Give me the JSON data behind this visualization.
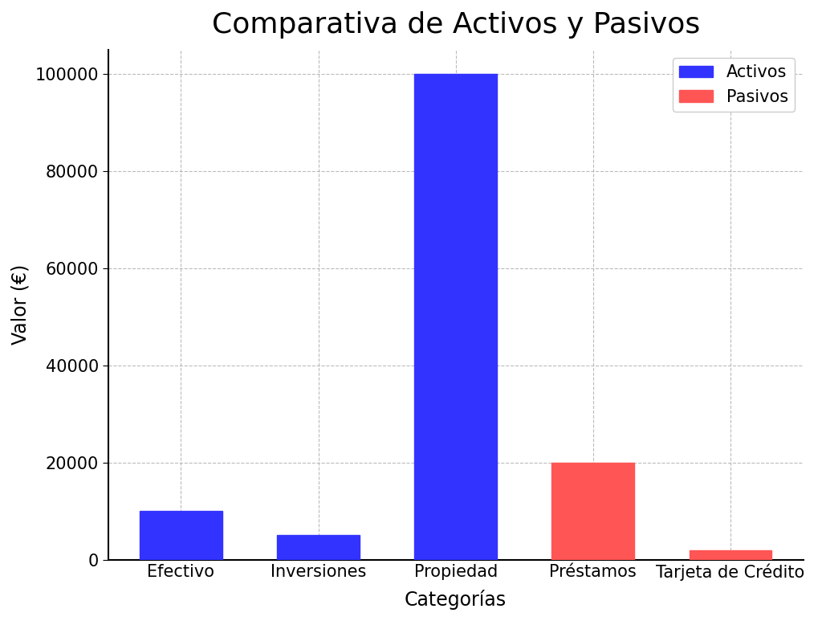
{
  "title": "Comparativa de Activos y Pasivos",
  "xlabel": "Categorías",
  "ylabel": "Valor (€)",
  "categories": [
    "Efectivo",
    "Inversiones",
    "Propiedad",
    "Préstamos",
    "Tarjeta de Crédito"
  ],
  "values": [
    10000,
    5000,
    100000,
    20000,
    2000
  ],
  "colors": [
    "#3333ff",
    "#3333ff",
    "#3333ff",
    "#ff5555",
    "#ff5555"
  ],
  "activos_label": "Activos",
  "pasivos_label": "Pasivos",
  "activos_color": "#3333ff",
  "pasivos_color": "#ff5555",
  "ylim": [
    0,
    105000
  ],
  "background_color": "#ffffff",
  "grid_color": "#aaaaaa",
  "title_fontsize": 26,
  "label_fontsize": 17,
  "tick_fontsize": 15,
  "legend_fontsize": 15
}
